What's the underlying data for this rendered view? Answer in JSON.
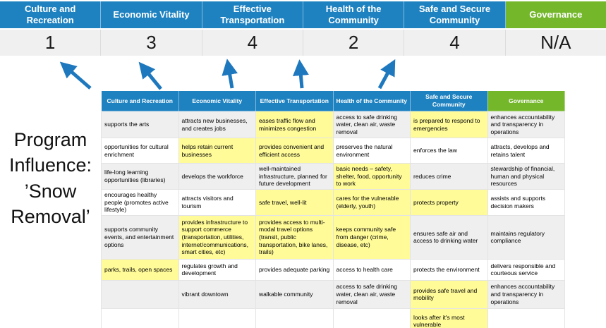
{
  "colors": {
    "blue": "#1E82C1",
    "green": "#74B72B",
    "highlight": "#FFFB99",
    "band": "#EFEFEF",
    "score_bg": "#F0F0F0",
    "arrow": "#1E78BE",
    "grid": "#E4E4E4"
  },
  "program_label": "Program Influence: ’Snow Removal’",
  "priorities": [
    {
      "label": "Culture and Recreation",
      "score": "1",
      "theme": "blue"
    },
    {
      "label": "Economic Vitality",
      "score": "3",
      "theme": "blue"
    },
    {
      "label": "Effective Transportation",
      "score": "4",
      "theme": "blue"
    },
    {
      "label": "Health of the Community",
      "score": "2",
      "theme": "blue"
    },
    {
      "label": "Safe and Secure Community",
      "score": "4",
      "theme": "blue"
    },
    {
      "label": "Governance",
      "score": "N/A",
      "theme": "green"
    }
  ],
  "matrix": {
    "headers": [
      {
        "label": "Culture and Recreation",
        "theme": "blue"
      },
      {
        "label": "Economic Vitality",
        "theme": "blue"
      },
      {
        "label": "Effective Transportation",
        "theme": "blue"
      },
      {
        "label": "Health of the Community",
        "theme": "blue"
      },
      {
        "label": "Safe and Secure Community",
        "theme": "blue"
      },
      {
        "label": "Governance",
        "theme": "green"
      }
    ],
    "rows": [
      [
        {
          "text": "supports the arts",
          "highlight": false
        },
        {
          "text": "attracts new businesses, and creates jobs",
          "highlight": false
        },
        {
          "text": "eases traffic flow and minimizes congestion",
          "highlight": true
        },
        {
          "text": "access to safe drinking water, clean air, waste removal",
          "highlight": false
        },
        {
          "text": "is prepared to respond to emergencies",
          "highlight": true
        },
        {
          "text": "enhances accountability and transparency in operations",
          "highlight": false
        }
      ],
      [
        {
          "text": "opportunities for cultural enrichment",
          "highlight": false
        },
        {
          "text": "helps retain current businesses",
          "highlight": true
        },
        {
          "text": "provides convenient and efficient access",
          "highlight": true
        },
        {
          "text": "preserves the natural environment",
          "highlight": false
        },
        {
          "text": "enforces the law",
          "highlight": false
        },
        {
          "text": "attracts, develops and retains talent",
          "highlight": false
        }
      ],
      [
        {
          "text": "life-long learning opportunities (libraries)",
          "highlight": false
        },
        {
          "text": "develops the workforce",
          "highlight": false
        },
        {
          "text": "well-maintained infrastructure, planned for future development",
          "highlight": false
        },
        {
          "text": "basic needs – safety, shelter, food, opportunity to work",
          "highlight": true
        },
        {
          "text": "reduces crime",
          "highlight": false
        },
        {
          "text": "stewardship of financial, human and physical resources",
          "highlight": false
        }
      ],
      [
        {
          "text": "encourages healthy people (promotes active lifestyle)",
          "highlight": false
        },
        {
          "text": "attracts visitors and tourism",
          "highlight": false
        },
        {
          "text": "safe travel, well-lit",
          "highlight": true
        },
        {
          "text": "cares for the vulnerable (elderly, youth)",
          "highlight": true
        },
        {
          "text": "protects property",
          "highlight": true
        },
        {
          "text": "assists and supports decision makers",
          "highlight": false
        }
      ],
      [
        {
          "text": "supports community events, and entertainment options",
          "highlight": false
        },
        {
          "text": "provides infrastructure to support commerce (transportation, utilities, internet/communications, smart cities, etc)",
          "highlight": true
        },
        {
          "text": "provides access to multi-modal travel options (transit, public transportation, bike lanes, trails)",
          "highlight": true
        },
        {
          "text": "keeps community safe from danger (crime, disease, etc)",
          "highlight": true
        },
        {
          "text": "ensures safe air and access to drinking water",
          "highlight": false
        },
        {
          "text": "maintains regulatory compliance",
          "highlight": false
        }
      ],
      [
        {
          "text": "parks, trails, open spaces",
          "highlight": true
        },
        {
          "text": "regulates growth and development",
          "highlight": false
        },
        {
          "text": "provides adequate parking",
          "highlight": false
        },
        {
          "text": "access to health care",
          "highlight": false
        },
        {
          "text": "protects the environment",
          "highlight": false
        },
        {
          "text": "delivers responsible and courteous service",
          "highlight": false
        }
      ],
      [
        {
          "text": "",
          "highlight": false
        },
        {
          "text": "vibrant downtown",
          "highlight": false
        },
        {
          "text": "walkable community",
          "highlight": false
        },
        {
          "text": "access to safe drinking water, clean air, waste removal",
          "highlight": false
        },
        {
          "text": "provides safe travel and mobility",
          "highlight": true
        },
        {
          "text": "enhances accountability and transparency in operations",
          "highlight": false
        }
      ],
      [
        {
          "text": "",
          "highlight": false
        },
        {
          "text": "",
          "highlight": false
        },
        {
          "text": "",
          "highlight": false
        },
        {
          "text": "",
          "highlight": false
        },
        {
          "text": "looks after it's most vulnerable",
          "highlight": true
        },
        {
          "text": "",
          "highlight": false
        }
      ]
    ]
  },
  "arrows": {
    "count": 5,
    "icon": "up-arrow-icon"
  }
}
